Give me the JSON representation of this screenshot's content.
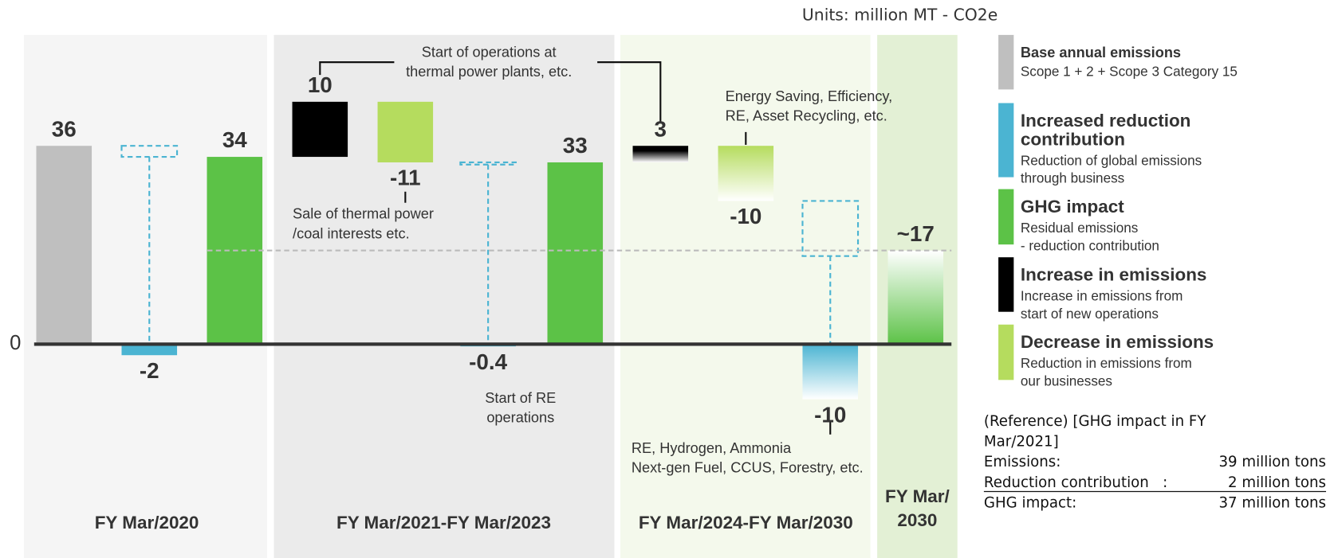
{
  "chart_data": {
    "type": "waterfall",
    "units": "Units: million MT - CO2e",
    "categories": [
      "FY Mar/2020",
      "FY Mar/2021-FY Mar/2023",
      "FY Mar/2024-FY Mar/2030",
      "FY Mar/\n2030"
    ],
    "series": [
      {
        "name": "Base annual emissions",
        "description": "Scope 1 + 2 + Scope 3 Category 15",
        "color": "#bfbfbf"
      },
      {
        "name": "Increased reduction\ncontribution",
        "description": "Reduction of global emissions\nthrough business",
        "color": "#4bb4d2"
      },
      {
        "name": "GHG impact",
        "description": "Residual emissions\n- reduction contribution",
        "color": "#5cc247"
      },
      {
        "name": "Increase in emissions",
        "description": "Increase in emissions from\nstart of new operations",
        "color": "#000000"
      },
      {
        "name": "Decrease in emissions",
        "description": "Reduction in emissions from\nour businesses",
        "color": "#b5dc5e"
      }
    ],
    "steps": [
      {
        "series": 0,
        "value": 36
      },
      {
        "series": 1,
        "value": -2
      },
      {
        "series": 2,
        "value": 34
      },
      {
        "series": 3,
        "value": 10
      },
      {
        "series": 4,
        "value": -11
      },
      {
        "series": 1,
        "value": -0.4
      },
      {
        "series": 2,
        "value": 33
      },
      {
        "series": 3,
        "value": 3,
        "gradient": true
      },
      {
        "series": 4,
        "value": -10,
        "gradient": true
      },
      {
        "series": 1,
        "value": -10,
        "gradient": true
      },
      {
        "series": 2,
        "value": 17,
        "value_label": "~17",
        "gradient": true
      }
    ],
    "annotations": [
      "Start of operations at\nthermal power plants, etc.",
      "Sale of thermal power\n/coal interests etc.",
      "Start of RE\noperations",
      "Energy Saving, Efficiency,\nRE, Asset Recycling, etc.",
      "RE, Hydrogen, Ammonia\nNext-gen Fuel, CCUS, Forestry, etc."
    ],
    "ylim": [
      -15,
      45
    ],
    "yticks": [
      0
    ],
    "reference": {
      "title": "(Reference) [GHG impact in FY\nMar/2021]",
      "rows": [
        {
          "label": "Emissions:",
          "value": "39 million tons"
        },
        {
          "label": "Reduction contribution   :",
          "value": "2 million tons"
        },
        {
          "label": "GHG impact:",
          "value": "37 million tons"
        }
      ]
    }
  }
}
